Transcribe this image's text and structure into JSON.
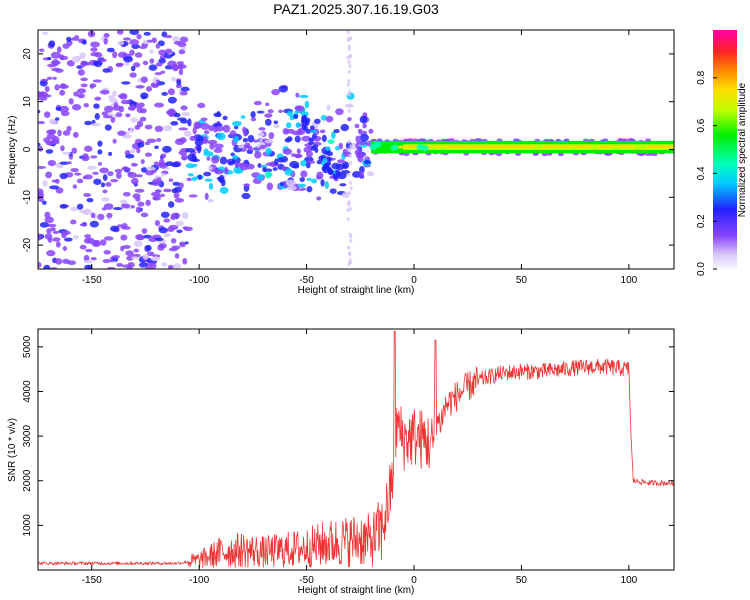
{
  "title": "PAZ1.2025.307.16.19.G03",
  "colors": {
    "trace": "#ee3333",
    "axis": "#000000",
    "background": "#ffffff"
  },
  "chart_data": [
    {
      "type": "heatmap",
      "xlabel": "Height of straight line (km)",
      "ylabel": "Frequency (Hz)",
      "xlim": [
        -175,
        121
      ],
      "ylim": [
        -25,
        25
      ],
      "xticks": [
        -150,
        -100,
        -50,
        0,
        50,
        100
      ],
      "yticks": [
        -20,
        -10,
        0,
        10,
        20
      ],
      "colorbar": {
        "label": "Normalized spectral amplitude",
        "range": [
          0.0,
          1.0
        ],
        "ticks": [
          "0.0",
          "0.2",
          "0.4",
          "0.6",
          "0.8"
        ],
        "tick_values": [
          0.0,
          0.2,
          0.4,
          0.6,
          0.8
        ]
      },
      "features": {
        "noise_region_km": [
          -175,
          -105
        ],
        "dispersed_region_km": [
          -105,
          -20
        ],
        "tone_region_km": [
          -20,
          121
        ],
        "tone_frequency_hz": 0.5,
        "tone_peak_amplitude": 0.75,
        "oblique_streak": {
          "from_km": -55,
          "from_hz": 9,
          "to_km": -37,
          "to_hz": -6
        },
        "vertical_streak_km": -30
      }
    },
    {
      "type": "line",
      "xlabel": "Height of straight line (km)",
      "ylabel": "SNR (10 * v/v)",
      "xlim": [
        -175,
        121
      ],
      "ylim": [
        0,
        5400
      ],
      "xticks": [
        -150,
        -100,
        -50,
        0,
        50,
        100
      ],
      "yticks": [
        1000,
        2000,
        3000,
        4000,
        5000
      ],
      "series": [
        {
          "name": "SNR",
          "x": [
            -175,
            -150,
            -125,
            -110,
            -100,
            -90,
            -80,
            -70,
            -60,
            -50,
            -40,
            -30,
            -25,
            -20,
            -15,
            -12,
            -10,
            -8,
            -5,
            0,
            5,
            9,
            10,
            12,
            15,
            20,
            25,
            30,
            40,
            50,
            60,
            70,
            80,
            90,
            100,
            101,
            102,
            110,
            120
          ],
          "y": [
            150,
            150,
            150,
            150,
            220,
            400,
            450,
            400,
            450,
            500,
            600,
            650,
            700,
            650,
            900,
            1500,
            2000,
            3300,
            2900,
            3000,
            2900,
            2800,
            3400,
            3300,
            3700,
            3900,
            4100,
            4250,
            4400,
            4450,
            4450,
            4500,
            4550,
            4550,
            4500,
            3000,
            2000,
            1950,
            1950
          ]
        }
      ],
      "spikes": [
        {
          "x": -9,
          "y": 5350
        },
        {
          "x": 10,
          "y": 5150
        }
      ]
    }
  ]
}
